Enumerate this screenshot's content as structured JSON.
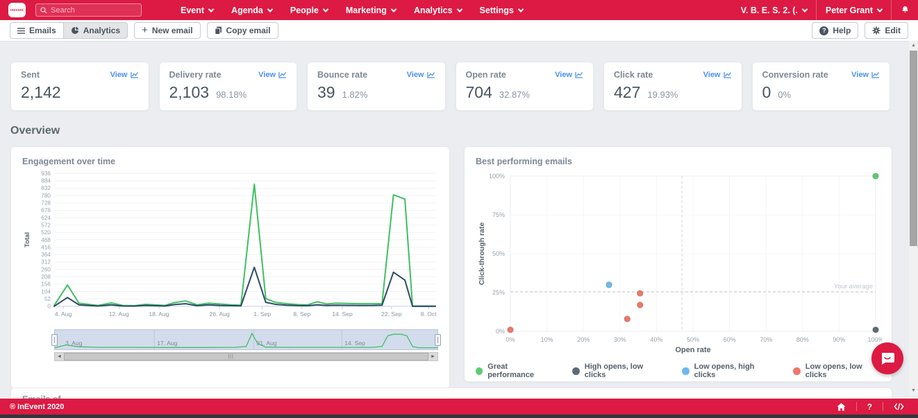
{
  "topbar": {
    "logo_text": "inevent",
    "search": {
      "placeholder": "Search"
    },
    "nav": [
      "Event",
      "Agenda",
      "People",
      "Marketing",
      "Analytics",
      "Settings"
    ],
    "event_selector": "V. B. E. S. 2. (.",
    "user_name": "Peter Grant"
  },
  "toolbar": {
    "emails": "Emails",
    "analytics": "Analytics",
    "new_email": "New email",
    "copy_email": "Copy email",
    "help": "Help",
    "edit": "Edit"
  },
  "stats": [
    {
      "label": "Sent",
      "view": "View",
      "value": "2,142",
      "pct": ""
    },
    {
      "label": "Delivery rate",
      "view": "View",
      "value": "2,103",
      "pct": "98.18%"
    },
    {
      "label": "Bounce rate",
      "view": "View",
      "value": "39",
      "pct": "1.82%"
    },
    {
      "label": "Open rate",
      "view": "View",
      "value": "704",
      "pct": "32.87%"
    },
    {
      "label": "Click rate",
      "view": "View",
      "value": "427",
      "pct": "19.93%"
    },
    {
      "label": "Conversion rate",
      "view": "View",
      "value": "0",
      "pct": "0%"
    }
  ],
  "overview_title": "Overview",
  "partial_card_title": "Emails of",
  "footer": {
    "copyright": "® InEvent 2020"
  },
  "colors": {
    "brand_red": "#dc1a43",
    "link_blue": "#4a90f4",
    "line_green": "#3fbf61",
    "line_navy": "#2e4a66",
    "dot_green": "#5ecb71",
    "dot_slate": "#5c6b79",
    "dot_blue": "#6cb8f0",
    "dot_red": "#f07668"
  },
  "chart_data": [
    {
      "type": "line",
      "title": "Engagement over time",
      "ylabel": "Total",
      "y_ticks": {
        "min": 0,
        "max": 936,
        "step": 52
      },
      "x_ticks": [
        {
          "label": "4. Aug",
          "pos": 0.024
        },
        {
          "label": "12. Aug",
          "pos": 0.17
        },
        {
          "label": "18. Aug",
          "pos": 0.275
        },
        {
          "label": "26. Aug",
          "pos": 0.434
        },
        {
          "label": "1. Sep",
          "pos": 0.546
        },
        {
          "label": "8. Sep",
          "pos": 0.65
        },
        {
          "label": "14. Sep",
          "pos": 0.756
        },
        {
          "label": "22. Sep",
          "pos": 0.885
        },
        {
          "label": "8. Oct",
          "pos": 0.982
        }
      ],
      "series": [
        {
          "name": "series-green",
          "color": "#3fbf61",
          "points": [
            [
              0,
              5
            ],
            [
              0.035,
              150
            ],
            [
              0.065,
              22
            ],
            [
              0.09,
              14
            ],
            [
              0.115,
              6
            ],
            [
              0.15,
              24
            ],
            [
              0.18,
              6
            ],
            [
              0.21,
              4
            ],
            [
              0.24,
              14
            ],
            [
              0.265,
              10
            ],
            [
              0.29,
              6
            ],
            [
              0.315,
              26
            ],
            [
              0.345,
              38
            ],
            [
              0.375,
              10
            ],
            [
              0.405,
              22
            ],
            [
              0.435,
              16
            ],
            [
              0.465,
              10
            ],
            [
              0.49,
              8
            ],
            [
              0.525,
              860
            ],
            [
              0.555,
              55
            ],
            [
              0.58,
              28
            ],
            [
              0.61,
              18
            ],
            [
              0.64,
              12
            ],
            [
              0.665,
              10
            ],
            [
              0.69,
              32
            ],
            [
              0.715,
              16
            ],
            [
              0.74,
              22
            ],
            [
              0.77,
              20
            ],
            [
              0.8,
              18
            ],
            [
              0.83,
              18
            ],
            [
              0.86,
              18
            ],
            [
              0.89,
              785
            ],
            [
              0.92,
              755
            ],
            [
              0.94,
              2
            ],
            [
              0.97,
              2
            ],
            [
              1,
              2
            ]
          ]
        },
        {
          "name": "series-navy",
          "color": "#2e4a66",
          "points": [
            [
              0,
              0
            ],
            [
              0.035,
              62
            ],
            [
              0.065,
              10
            ],
            [
              0.09,
              6
            ],
            [
              0.115,
              2
            ],
            [
              0.15,
              10
            ],
            [
              0.18,
              2
            ],
            [
              0.21,
              1
            ],
            [
              0.24,
              6
            ],
            [
              0.265,
              4
            ],
            [
              0.29,
              2
            ],
            [
              0.315,
              12
            ],
            [
              0.345,
              18
            ],
            [
              0.375,
              4
            ],
            [
              0.405,
              10
            ],
            [
              0.435,
              6
            ],
            [
              0.465,
              4
            ],
            [
              0.49,
              3
            ],
            [
              0.525,
              275
            ],
            [
              0.555,
              28
            ],
            [
              0.58,
              14
            ],
            [
              0.61,
              8
            ],
            [
              0.64,
              5
            ],
            [
              0.665,
              4
            ],
            [
              0.69,
              10
            ],
            [
              0.715,
              6
            ],
            [
              0.74,
              8
            ],
            [
              0.77,
              7
            ],
            [
              0.8,
              6
            ],
            [
              0.83,
              6
            ],
            [
              0.86,
              8
            ],
            [
              0.89,
              240
            ],
            [
              0.92,
              185
            ],
            [
              0.94,
              0
            ],
            [
              0.97,
              0
            ],
            [
              1,
              0
            ]
          ]
        }
      ],
      "brush": {
        "labels": [
          {
            "label": "3. Aug",
            "pos": 0.02
          },
          {
            "label": "17. Aug",
            "pos": 0.26
          },
          {
            "label": "31. Aug",
            "pos": 0.52
          },
          {
            "label": "14. Sep",
            "pos": 0.75
          }
        ],
        "line": [
          [
            0,
            2
          ],
          [
            0.03,
            20
          ],
          [
            0.06,
            8
          ],
          [
            0.12,
            4
          ],
          [
            0.2,
            4
          ],
          [
            0.3,
            3
          ],
          [
            0.4,
            3
          ],
          [
            0.47,
            4
          ],
          [
            0.5,
            10
          ],
          [
            0.515,
            95
          ],
          [
            0.53,
            30
          ],
          [
            0.55,
            6
          ],
          [
            0.62,
            4
          ],
          [
            0.7,
            4
          ],
          [
            0.78,
            4
          ],
          [
            0.83,
            4
          ],
          [
            0.855,
            10
          ],
          [
            0.87,
            80
          ],
          [
            0.885,
            90
          ],
          [
            0.905,
            90
          ],
          [
            0.92,
            80
          ],
          [
            0.935,
            10
          ],
          [
            0.95,
            2
          ],
          [
            1,
            2
          ]
        ]
      }
    },
    {
      "type": "scatter",
      "title": "Best performing emails",
      "xlabel": "Open rate",
      "ylabel": "Click-through rate",
      "xlim": [
        0,
        100
      ],
      "ylim": [
        0,
        100
      ],
      "x_tick_step": 10,
      "y_tick_step": 25,
      "avg_line": {
        "value": 25.5,
        "label": "Your average"
      },
      "vline": 47,
      "groups": [
        {
          "name": "Great performance",
          "color": "#5ecb71",
          "points": [
            [
              100,
              100
            ]
          ]
        },
        {
          "name": "High opens, low clicks",
          "color": "#5c6b79",
          "points": [
            [
              100,
              1
            ]
          ]
        },
        {
          "name": "Low opens, high clicks",
          "color": "#6cb8f0",
          "points": [
            [
              27,
              30
            ]
          ]
        },
        {
          "name": "Low opens, low clicks",
          "color": "#f07668",
          "points": [
            [
              0,
              1
            ],
            [
              32,
              8
            ],
            [
              35.5,
              17
            ],
            [
              35.5,
              24.5
            ]
          ]
        }
      ]
    }
  ]
}
